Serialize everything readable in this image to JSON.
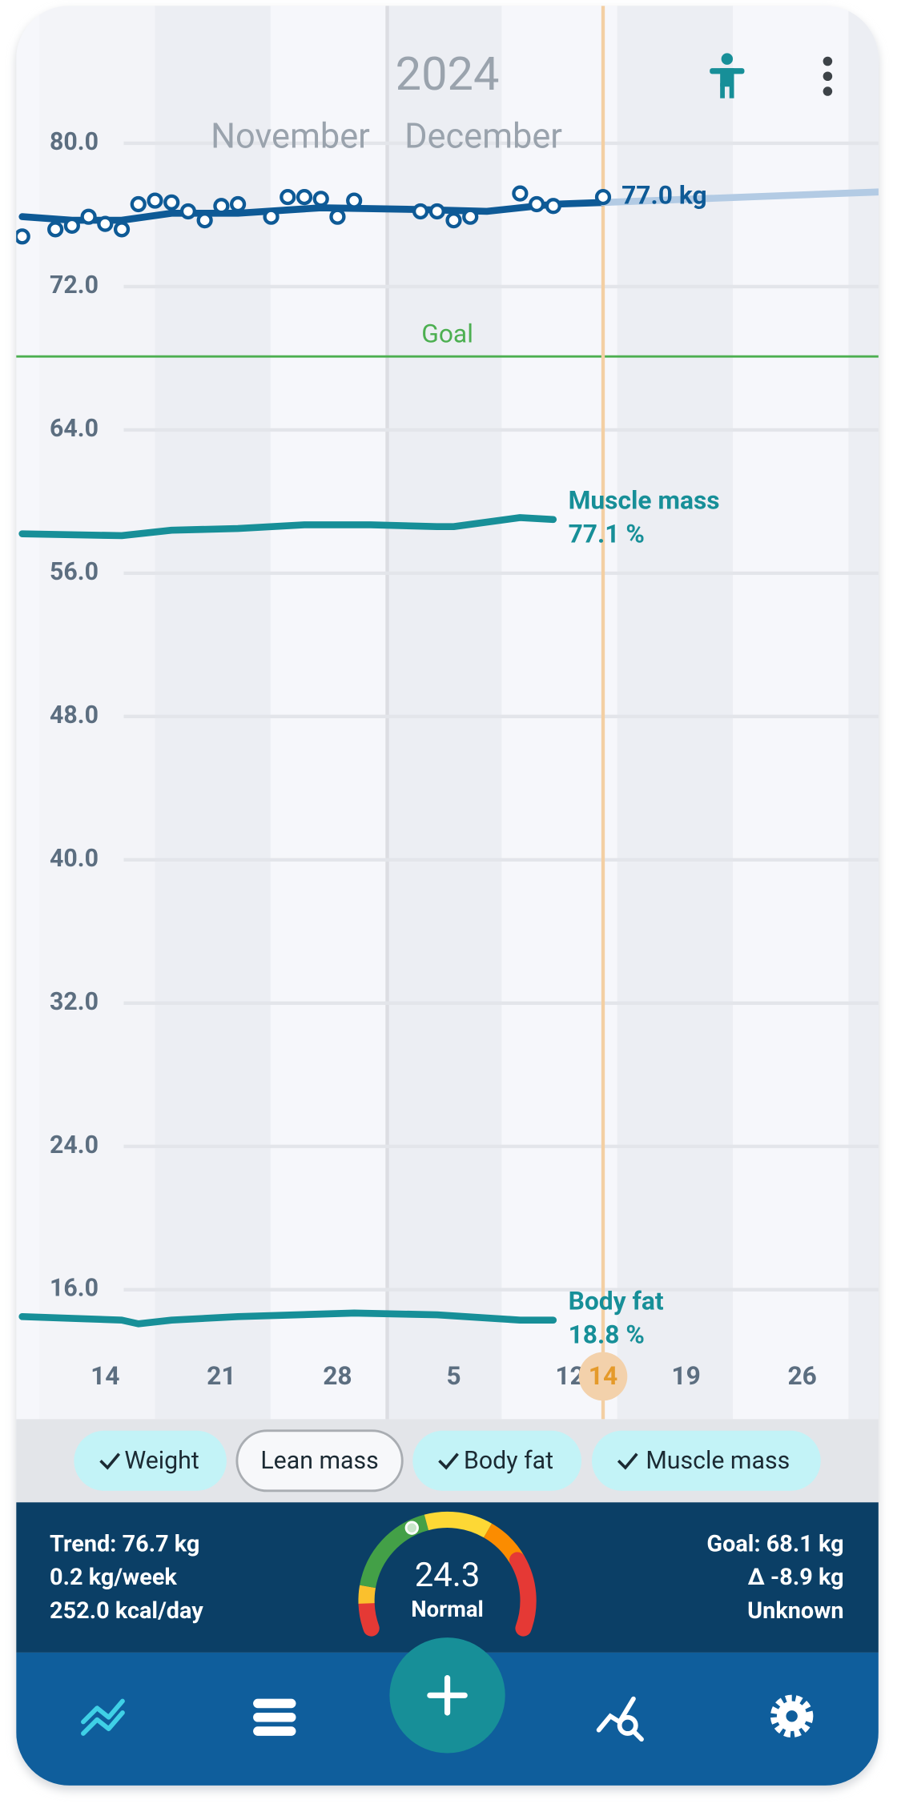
{
  "chart_data": {
    "type": "line",
    "title": "2024",
    "months": [
      "November",
      "December"
    ],
    "xlim": [
      "2024-11-09",
      "2024-12-31"
    ],
    "ylim": [
      9,
      88
    ],
    "yticks": [
      {
        "value": 16,
        "label": "16.0"
      },
      {
        "value": 24,
        "label": "24.0"
      },
      {
        "value": 32,
        "label": "32.0"
      },
      {
        "value": 40,
        "label": "40.0"
      },
      {
        "value": 48,
        "label": "48.0"
      },
      {
        "value": 56,
        "label": "56.0"
      },
      {
        "value": 64,
        "label": "64.0"
      },
      {
        "value": 72,
        "label": "72.0"
      },
      {
        "value": 80,
        "label": "80.0"
      }
    ],
    "xticks": [
      {
        "value": "2024-11-14",
        "label": "14"
      },
      {
        "value": "2024-11-21",
        "label": "21"
      },
      {
        "value": "2024-11-28",
        "label": "28"
      },
      {
        "value": "2024-12-05",
        "label": "5"
      },
      {
        "value": "2024-12-12",
        "label": "12"
      },
      {
        "value": "2024-12-19",
        "label": "19"
      },
      {
        "value": "2024-12-26",
        "label": "26"
      }
    ],
    "grid": true,
    "goal": {
      "value": 68.1,
      "label": "Goal"
    },
    "marker": {
      "x": "2024-12-14",
      "label": "14"
    },
    "series": [
      {
        "style": "line",
        "color": "#0e5a96",
        "x": [
          "2024-11-09",
          "2024-11-12",
          "2024-11-15",
          "2024-11-18",
          "2024-11-22",
          "2024-11-27",
          "2024-12-03",
          "2024-12-07",
          "2024-12-11",
          "2024-12-14"
        ],
        "values": [
          75.9,
          75.7,
          75.7,
          76.1,
          76.1,
          76.4,
          76.3,
          76.2,
          76.6,
          76.7
        ]
      },
      {
        "style": "line",
        "color": "#b3cbe4",
        "x": [
          "2024-12-14",
          "2024-12-31"
        ],
        "values": [
          76.7,
          77.3
        ]
      },
      {
        "style": "points",
        "color": "#0e5a96",
        "end_label": "77.0 kg",
        "x": [
          "2024-11-09",
          "2024-11-11",
          "2024-11-12",
          "2024-11-13",
          "2024-11-14",
          "2024-11-15",
          "2024-11-16",
          "2024-11-17",
          "2024-11-18",
          "2024-11-19",
          "2024-11-20",
          "2024-11-21",
          "2024-11-22",
          "2024-11-24",
          "2024-11-25",
          "2024-11-26",
          "2024-11-27",
          "2024-11-28",
          "2024-11-29",
          "2024-12-03",
          "2024-12-04",
          "2024-12-05",
          "2024-12-06",
          "2024-12-09",
          "2024-12-10",
          "2024-12-11",
          "2024-12-14"
        ],
        "values": [
          74.8,
          75.2,
          75.4,
          75.9,
          75.5,
          75.2,
          76.6,
          76.8,
          76.7,
          76.2,
          75.7,
          76.5,
          76.6,
          75.9,
          77.0,
          77.0,
          76.9,
          75.9,
          76.8,
          76.2,
          76.2,
          75.7,
          75.9,
          77.2,
          76.6,
          76.5,
          77.0
        ]
      },
      {
        "style": "line",
        "name": "Muscle mass",
        "end_label": "77.1 %",
        "color": "#178f98",
        "x": [
          "2024-11-09",
          "2024-11-15",
          "2024-11-18",
          "2024-11-22",
          "2024-11-26",
          "2024-11-30",
          "2024-12-04",
          "2024-12-05",
          "2024-12-09",
          "2024-12-11"
        ],
        "values": [
          58.2,
          58.1,
          58.4,
          58.5,
          58.7,
          58.7,
          58.6,
          58.6,
          59.1,
          59.0
        ]
      },
      {
        "style": "line",
        "name": "Body fat",
        "end_label": "18.8 %",
        "color": "#178f98",
        "x": [
          "2024-11-09",
          "2024-11-15",
          "2024-11-16",
          "2024-11-18",
          "2024-11-22",
          "2024-11-29",
          "2024-12-04",
          "2024-12-09",
          "2024-12-11"
        ],
        "values": [
          14.5,
          14.3,
          14.1,
          14.3,
          14.5,
          14.7,
          14.6,
          14.3,
          14.3
        ]
      }
    ]
  },
  "filters": [
    {
      "label": "Weight",
      "checked": true
    },
    {
      "label": "Lean mass",
      "checked": false
    },
    {
      "label": "Body fat",
      "checked": true
    },
    {
      "label": "Muscle mass",
      "checked": true
    }
  ],
  "summary": {
    "left": [
      "Trend: 76.7 kg",
      "0.2 kg/week",
      "252.0 kcal/day"
    ],
    "bmi": "24.3",
    "bmi_class": "Normal",
    "right": [
      "Goal: 68.1 kg",
      "Δ -8.9 kg",
      "Unknown"
    ]
  }
}
